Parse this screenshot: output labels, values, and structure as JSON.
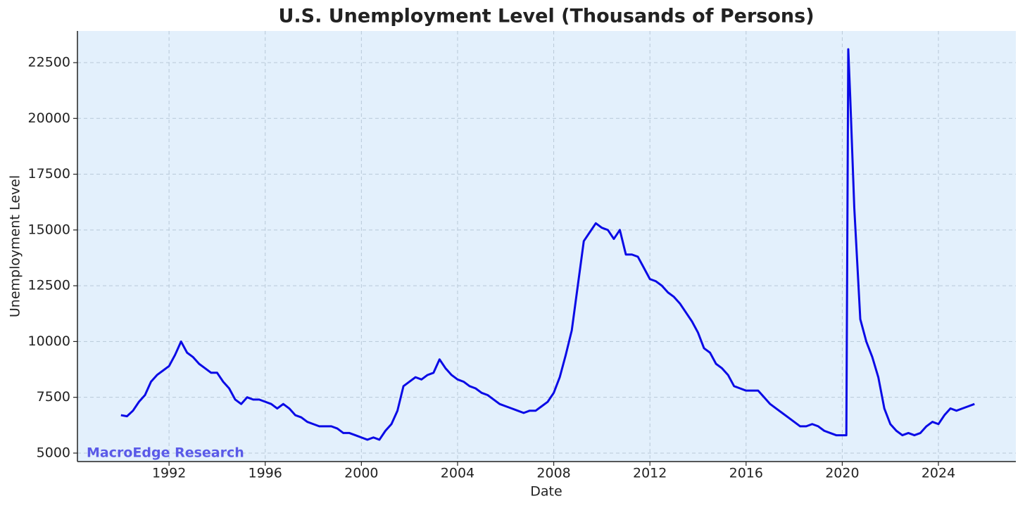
{
  "chart_data": {
    "type": "line",
    "title": "U.S. Unemployment Level (Thousands of Persons)",
    "x_label": "Date",
    "y_label": "Unemployment Level",
    "annotation": "MacroEdge Research",
    "color": "#0a0ae6",
    "grid": true,
    "xlim": [
      1988.19,
      2027.22
    ],
    "ylim": [
      4620,
      23920
    ],
    "xticks": [
      1992,
      1996,
      2000,
      2004,
      2008,
      2012,
      2016,
      2020,
      2024
    ],
    "yticks": [
      5000,
      7500,
      10000,
      12500,
      15000,
      17500,
      20000,
      22500
    ],
    "x": [
      1990,
      1990.25,
      1990.5,
      1990.75,
      1991,
      1991.25,
      1991.5,
      1991.75,
      1992,
      1992.25,
      1992.5,
      1992.75,
      1993,
      1993.25,
      1993.5,
      1993.75,
      1994,
      1994.25,
      1994.5,
      1994.75,
      1995,
      1995.25,
      1995.5,
      1995.75,
      1996,
      1996.25,
      1996.5,
      1996.75,
      1997,
      1997.25,
      1997.5,
      1997.75,
      1998,
      1998.25,
      1998.5,
      1998.75,
      1999,
      1999.25,
      1999.5,
      1999.75,
      2000,
      2000.25,
      2000.5,
      2000.75,
      2001,
      2001.25,
      2001.5,
      2001.75,
      2002,
      2002.25,
      2002.5,
      2002.75,
      2003,
      2003.25,
      2003.5,
      2003.75,
      2004,
      2004.25,
      2004.5,
      2004.75,
      2005,
      2005.25,
      2005.5,
      2005.75,
      2006,
      2006.25,
      2006.5,
      2006.75,
      2007,
      2007.25,
      2007.5,
      2007.75,
      2008,
      2008.25,
      2008.5,
      2008.75,
      2009,
      2009.25,
      2009.5,
      2009.75,
      2010,
      2010.25,
      2010.5,
      2010.75,
      2011,
      2011.25,
      2011.5,
      2011.75,
      2012,
      2012.25,
      2012.5,
      2012.75,
      2013,
      2013.25,
      2013.5,
      2013.75,
      2014,
      2014.25,
      2014.5,
      2014.75,
      2015,
      2015.25,
      2015.5,
      2015.75,
      2016,
      2016.25,
      2016.5,
      2016.75,
      2017,
      2017.25,
      2017.5,
      2017.75,
      2018,
      2018.25,
      2018.5,
      2018.75,
      2019,
      2019.25,
      2019.5,
      2019.75,
      2020,
      2020.17,
      2020.25,
      2020.33,
      2020.5,
      2020.75,
      2021,
      2021.25,
      2021.5,
      2021.75,
      2022,
      2022.25,
      2022.5,
      2022.75,
      2023,
      2023.25,
      2023.5,
      2023.75,
      2024,
      2024.25,
      2024.5,
      2024.75,
      2025,
      2025.25,
      2025.5
    ],
    "values": [
      6700,
      6650,
      6900,
      7300,
      7600,
      8200,
      8500,
      8700,
      8900,
      9400,
      10000,
      9500,
      9300,
      9000,
      8800,
      8600,
      8600,
      8200,
      7900,
      7400,
      7200,
      7500,
      7400,
      7400,
      7300,
      7200,
      7000,
      7200,
      7000,
      6700,
      6600,
      6400,
      6300,
      6200,
      6200,
      6200,
      6100,
      5900,
      5900,
      5800,
      5700,
      5600,
      5700,
      5600,
      6000,
      6300,
      6900,
      8000,
      8200,
      8400,
      8300,
      8500,
      8600,
      9200,
      8800,
      8500,
      8300,
      8200,
      8000,
      7900,
      7700,
      7600,
      7400,
      7200,
      7100,
      7000,
      6900,
      6800,
      6900,
      6900,
      7100,
      7300,
      7700,
      8400,
      9400,
      10500,
      12500,
      14500,
      14900,
      15300,
      15100,
      15000,
      14600,
      15000,
      13900,
      13900,
      13800,
      13300,
      12800,
      12700,
      12500,
      12200,
      12000,
      11700,
      11300,
      10900,
      10400,
      9700,
      9500,
      9000,
      8800,
      8500,
      8000,
      7900,
      7800,
      7800,
      7800,
      7500,
      7200,
      7000,
      6800,
      6600,
      6400,
      6200,
      6200,
      6300,
      6200,
      6000,
      5900,
      5800,
      5800,
      5800,
      23100,
      21000,
      16000,
      11000,
      10000,
      9300,
      8400,
      7000,
      6300,
      6000,
      5800,
      5900,
      5800,
      5900,
      6200,
      6400,
      6300,
      6700,
      7000,
      6900,
      7000,
      7100,
      7200
    ]
  }
}
